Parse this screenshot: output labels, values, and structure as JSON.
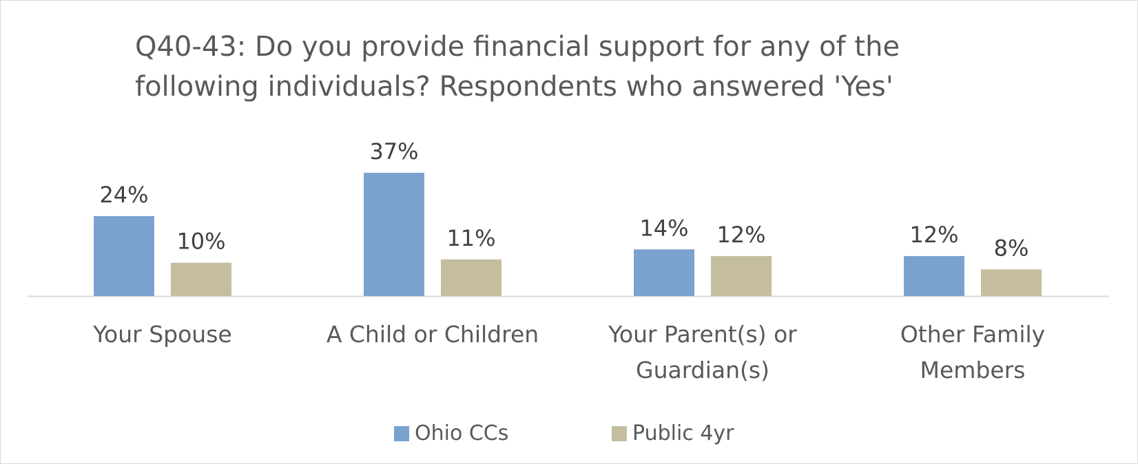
{
  "chart_data": {
    "type": "bar",
    "title": "Q40-43: Do you provide financial support for any of the following individuals? Respondents who answered 'Yes'",
    "categories": [
      [
        "Your Spouse"
      ],
      [
        "A Child or Children"
      ],
      [
        "Your Parent(s) or",
        "Guardian(s)"
      ],
      [
        "Other Family",
        "Members"
      ]
    ],
    "series": [
      {
        "name": "Ohio CCs",
        "color": "#7ba1cf",
        "values": [
          24,
          37,
          14,
          12
        ],
        "labels": [
          "24%",
          "37%",
          "14%",
          "12%"
        ]
      },
      {
        "name": "Public 4yr",
        "color": "#c4bd9e",
        "values": [
          10,
          11,
          12,
          8
        ],
        "labels": [
          "10%",
          "11%",
          "12%",
          "8%"
        ]
      }
    ],
    "value_format": "percent",
    "grid": false,
    "legend_position": "bottom"
  }
}
